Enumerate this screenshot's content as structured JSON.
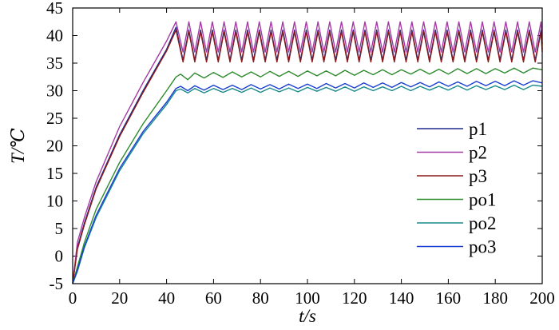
{
  "chart_data": {
    "type": "line",
    "title": "",
    "xlabel": "t/s",
    "ylabel": "T/℃",
    "xlim": [
      0,
      200
    ],
    "ylim": [
      -5,
      45
    ],
    "x_ticks": [
      "0",
      "20",
      "40",
      "60",
      "80",
      "100",
      "120",
      "140",
      "160",
      "180",
      "200"
    ],
    "y_ticks": [
      "-5",
      "0",
      "5",
      "10",
      "15",
      "20",
      "25",
      "30",
      "35",
      "40",
      "45"
    ],
    "grid": false,
    "legend_position": "right",
    "series": [
      {
        "name": "p1",
        "color": "#1f2a8a",
        "x": [
          0,
          2,
          5,
          10,
          20,
          30,
          40,
          44,
          47,
          49.5,
          52,
          54.5,
          57,
          59.5,
          62,
          64.5,
          67,
          69.5,
          72,
          74.5,
          77,
          79.5,
          82,
          84.5,
          87,
          89.5,
          92,
          94.5,
          97,
          99.5,
          102,
          104.5,
          107,
          109.5,
          112,
          114.5,
          117,
          119.5,
          122,
          124.5,
          127,
          129.5,
          132,
          134.5,
          137,
          139.5,
          142,
          144.5,
          147,
          149.5,
          152,
          154.5,
          157,
          159.5,
          162,
          164.5,
          167,
          169.5,
          172,
          174.5,
          177,
          179.5,
          182,
          184.5,
          187,
          189.5,
          192,
          194.5,
          197,
          199.5,
          200
        ],
        "y": [
          -5,
          1.5,
          6,
          12.5,
          22,
          30,
          37.5,
          41.5,
          35.5,
          41,
          35.5,
          41,
          35.5,
          41,
          35.5,
          41,
          35.5,
          41,
          35.5,
          41,
          35.5,
          41,
          35.5,
          41,
          35.5,
          41,
          35.5,
          41,
          35.5,
          41,
          35.5,
          41,
          35.5,
          41,
          35.5,
          41,
          35.5,
          41,
          35.5,
          41,
          35.5,
          41,
          35.5,
          41,
          35.5,
          41,
          35.5,
          41,
          35.5,
          41,
          35.5,
          41,
          35.5,
          41,
          35.5,
          41,
          35.5,
          41,
          35.5,
          41,
          35.5,
          41,
          35.5,
          41,
          35.5,
          41,
          35.5,
          41,
          35.5,
          41,
          37.5
        ]
      },
      {
        "name": "p2",
        "color": "#a53aa5",
        "x": [
          0,
          2,
          5,
          10,
          20,
          30,
          40,
          44,
          47,
          49.5,
          52,
          54.5,
          57,
          59.5,
          62,
          64.5,
          67,
          69.5,
          72,
          74.5,
          77,
          79.5,
          82,
          84.5,
          87,
          89.5,
          92,
          94.5,
          97,
          99.5,
          102,
          104.5,
          107,
          109.5,
          112,
          114.5,
          117,
          119.5,
          122,
          124.5,
          127,
          129.5,
          132,
          134.5,
          137,
          139.5,
          142,
          144.5,
          147,
          149.5,
          152,
          154.5,
          157,
          159.5,
          162,
          164.5,
          167,
          169.5,
          172,
          174.5,
          177,
          179.5,
          182,
          184.5,
          187,
          189.5,
          192,
          194.5,
          197,
          199.5,
          200
        ],
        "y": [
          -5,
          2.5,
          7,
          13.5,
          23.5,
          31.5,
          39,
          42.5,
          37,
          42.5,
          37,
          42.5,
          37,
          42.5,
          37,
          42.5,
          37,
          42.5,
          37,
          42.5,
          37,
          42.5,
          37,
          42.5,
          37,
          42.5,
          37,
          42.5,
          37,
          42.5,
          37,
          42.5,
          37,
          42.5,
          37,
          42.5,
          37,
          42.5,
          37,
          42.5,
          37,
          42.5,
          37,
          42.5,
          37,
          42.5,
          37,
          42.5,
          37,
          42.5,
          37,
          42.5,
          37,
          42.5,
          37,
          42.5,
          37,
          42.5,
          37,
          42.5,
          37,
          42.5,
          37,
          42.5,
          37,
          42.5,
          37,
          42.5,
          37,
          42.5,
          38.5
        ]
      },
      {
        "name": "p3",
        "color": "#8b1a1a",
        "x": [
          0,
          2,
          5,
          10,
          20,
          30,
          40,
          44,
          47,
          49.5,
          52,
          54.5,
          57,
          59.5,
          62,
          64.5,
          67,
          69.5,
          72,
          74.5,
          77,
          79.5,
          82,
          84.5,
          87,
          89.5,
          92,
          94.5,
          97,
          99.5,
          102,
          104.5,
          107,
          109.5,
          112,
          114.5,
          117,
          119.5,
          122,
          124.5,
          127,
          129.5,
          132,
          134.5,
          137,
          139.5,
          142,
          144.5,
          147,
          149.5,
          152,
          154.5,
          157,
          159.5,
          162,
          164.5,
          167,
          169.5,
          172,
          174.5,
          177,
          179.5,
          182,
          184.5,
          187,
          189.5,
          192,
          194.5,
          197,
          199.5,
          200
        ],
        "y": [
          -5,
          1.2,
          5.7,
          12.2,
          21.7,
          29.7,
          37.2,
          41,
          35.2,
          40.7,
          35.2,
          40.7,
          35.2,
          40.7,
          35.2,
          40.7,
          35.2,
          40.7,
          35.2,
          40.7,
          35.2,
          40.7,
          35.2,
          40.7,
          35.2,
          40.7,
          35.2,
          40.7,
          35.2,
          40.7,
          35.2,
          40.7,
          35.2,
          40.7,
          35.2,
          40.7,
          35.2,
          40.7,
          35.2,
          40.7,
          35.2,
          40.7,
          35.2,
          40.7,
          35.2,
          40.7,
          35.2,
          40.7,
          35.2,
          40.7,
          35.2,
          40.7,
          35.2,
          40.7,
          35.2,
          40.7,
          35.2,
          40.7,
          35.2,
          40.7,
          35.2,
          40.7,
          35.2,
          40.7,
          35.2,
          40.7,
          35.2,
          40.7,
          35.2,
          40.7,
          37
        ]
      },
      {
        "name": "po1",
        "color": "#2e8b2e",
        "x": [
          0,
          2,
          5,
          10,
          20,
          30,
          40,
          44,
          46,
          49,
          52,
          56,
          60,
          64,
          68,
          72,
          76,
          80,
          84,
          88,
          92,
          96,
          100,
          104,
          108,
          112,
          116,
          120,
          124,
          128,
          132,
          136,
          140,
          144,
          148,
          152,
          156,
          160,
          164,
          168,
          172,
          176,
          180,
          184,
          188,
          192,
          196,
          200
        ],
        "y": [
          -5,
          -2,
          2.5,
          8.5,
          17,
          24,
          30,
          32.5,
          33,
          32,
          33.2,
          32.3,
          33.3,
          32.4,
          33.4,
          32.5,
          33.4,
          32.5,
          33.5,
          32.6,
          33.5,
          32.6,
          33.6,
          32.7,
          33.6,
          32.7,
          33.7,
          32.8,
          33.7,
          32.9,
          33.8,
          32.9,
          33.8,
          33,
          33.9,
          33,
          33.9,
          33,
          34,
          33.1,
          34,
          33.1,
          34,
          33.2,
          34.1,
          33.2,
          34.1,
          33.8
        ]
      },
      {
        "name": "po2",
        "color": "#1a8a8a",
        "x": [
          0,
          2,
          5,
          10,
          20,
          30,
          40,
          44,
          46,
          49,
          52,
          56,
          60,
          64,
          68,
          72,
          76,
          80,
          84,
          88,
          92,
          96,
          100,
          104,
          108,
          112,
          116,
          120,
          124,
          128,
          132,
          136,
          140,
          144,
          148,
          152,
          156,
          160,
          164,
          168,
          172,
          176,
          180,
          184,
          188,
          192,
          196,
          200
        ],
        "y": [
          -5,
          -2.8,
          1.5,
          7,
          15.5,
          22.2,
          27.5,
          30,
          30.3,
          29.6,
          30.4,
          29.6,
          30.4,
          29.7,
          30.4,
          29.7,
          30.5,
          29.7,
          30.5,
          29.8,
          30.5,
          29.8,
          30.6,
          29.9,
          30.6,
          29.9,
          30.7,
          29.9,
          30.7,
          30,
          30.7,
          30,
          30.8,
          30,
          30.8,
          30.1,
          30.8,
          30.1,
          30.9,
          30.1,
          30.9,
          30.2,
          30.9,
          30.2,
          31,
          30.2,
          31,
          30.8
        ]
      },
      {
        "name": "po3",
        "color": "#1a3fd0",
        "x": [
          0,
          2,
          5,
          10,
          20,
          30,
          40,
          44,
          46,
          49,
          52,
          56,
          60,
          64,
          68,
          72,
          76,
          80,
          84,
          88,
          92,
          96,
          100,
          104,
          108,
          112,
          116,
          120,
          124,
          128,
          132,
          136,
          140,
          144,
          148,
          152,
          156,
          160,
          164,
          168,
          172,
          176,
          180,
          184,
          188,
          192,
          196,
          200
        ],
        "y": [
          -5,
          -2.5,
          1.8,
          7.4,
          15.9,
          22.6,
          27.9,
          30.4,
          30.8,
          30,
          30.9,
          30.1,
          31,
          30.2,
          31,
          30.2,
          31.1,
          30.3,
          31.1,
          30.3,
          31.2,
          30.4,
          31.2,
          30.4,
          31.3,
          30.5,
          31.3,
          30.5,
          31.4,
          30.6,
          31.4,
          30.6,
          31.5,
          30.7,
          31.5,
          30.7,
          31.6,
          30.8,
          31.6,
          30.8,
          31.7,
          30.9,
          31.7,
          30.9,
          31.8,
          31,
          31.8,
          31.4
        ]
      }
    ]
  }
}
